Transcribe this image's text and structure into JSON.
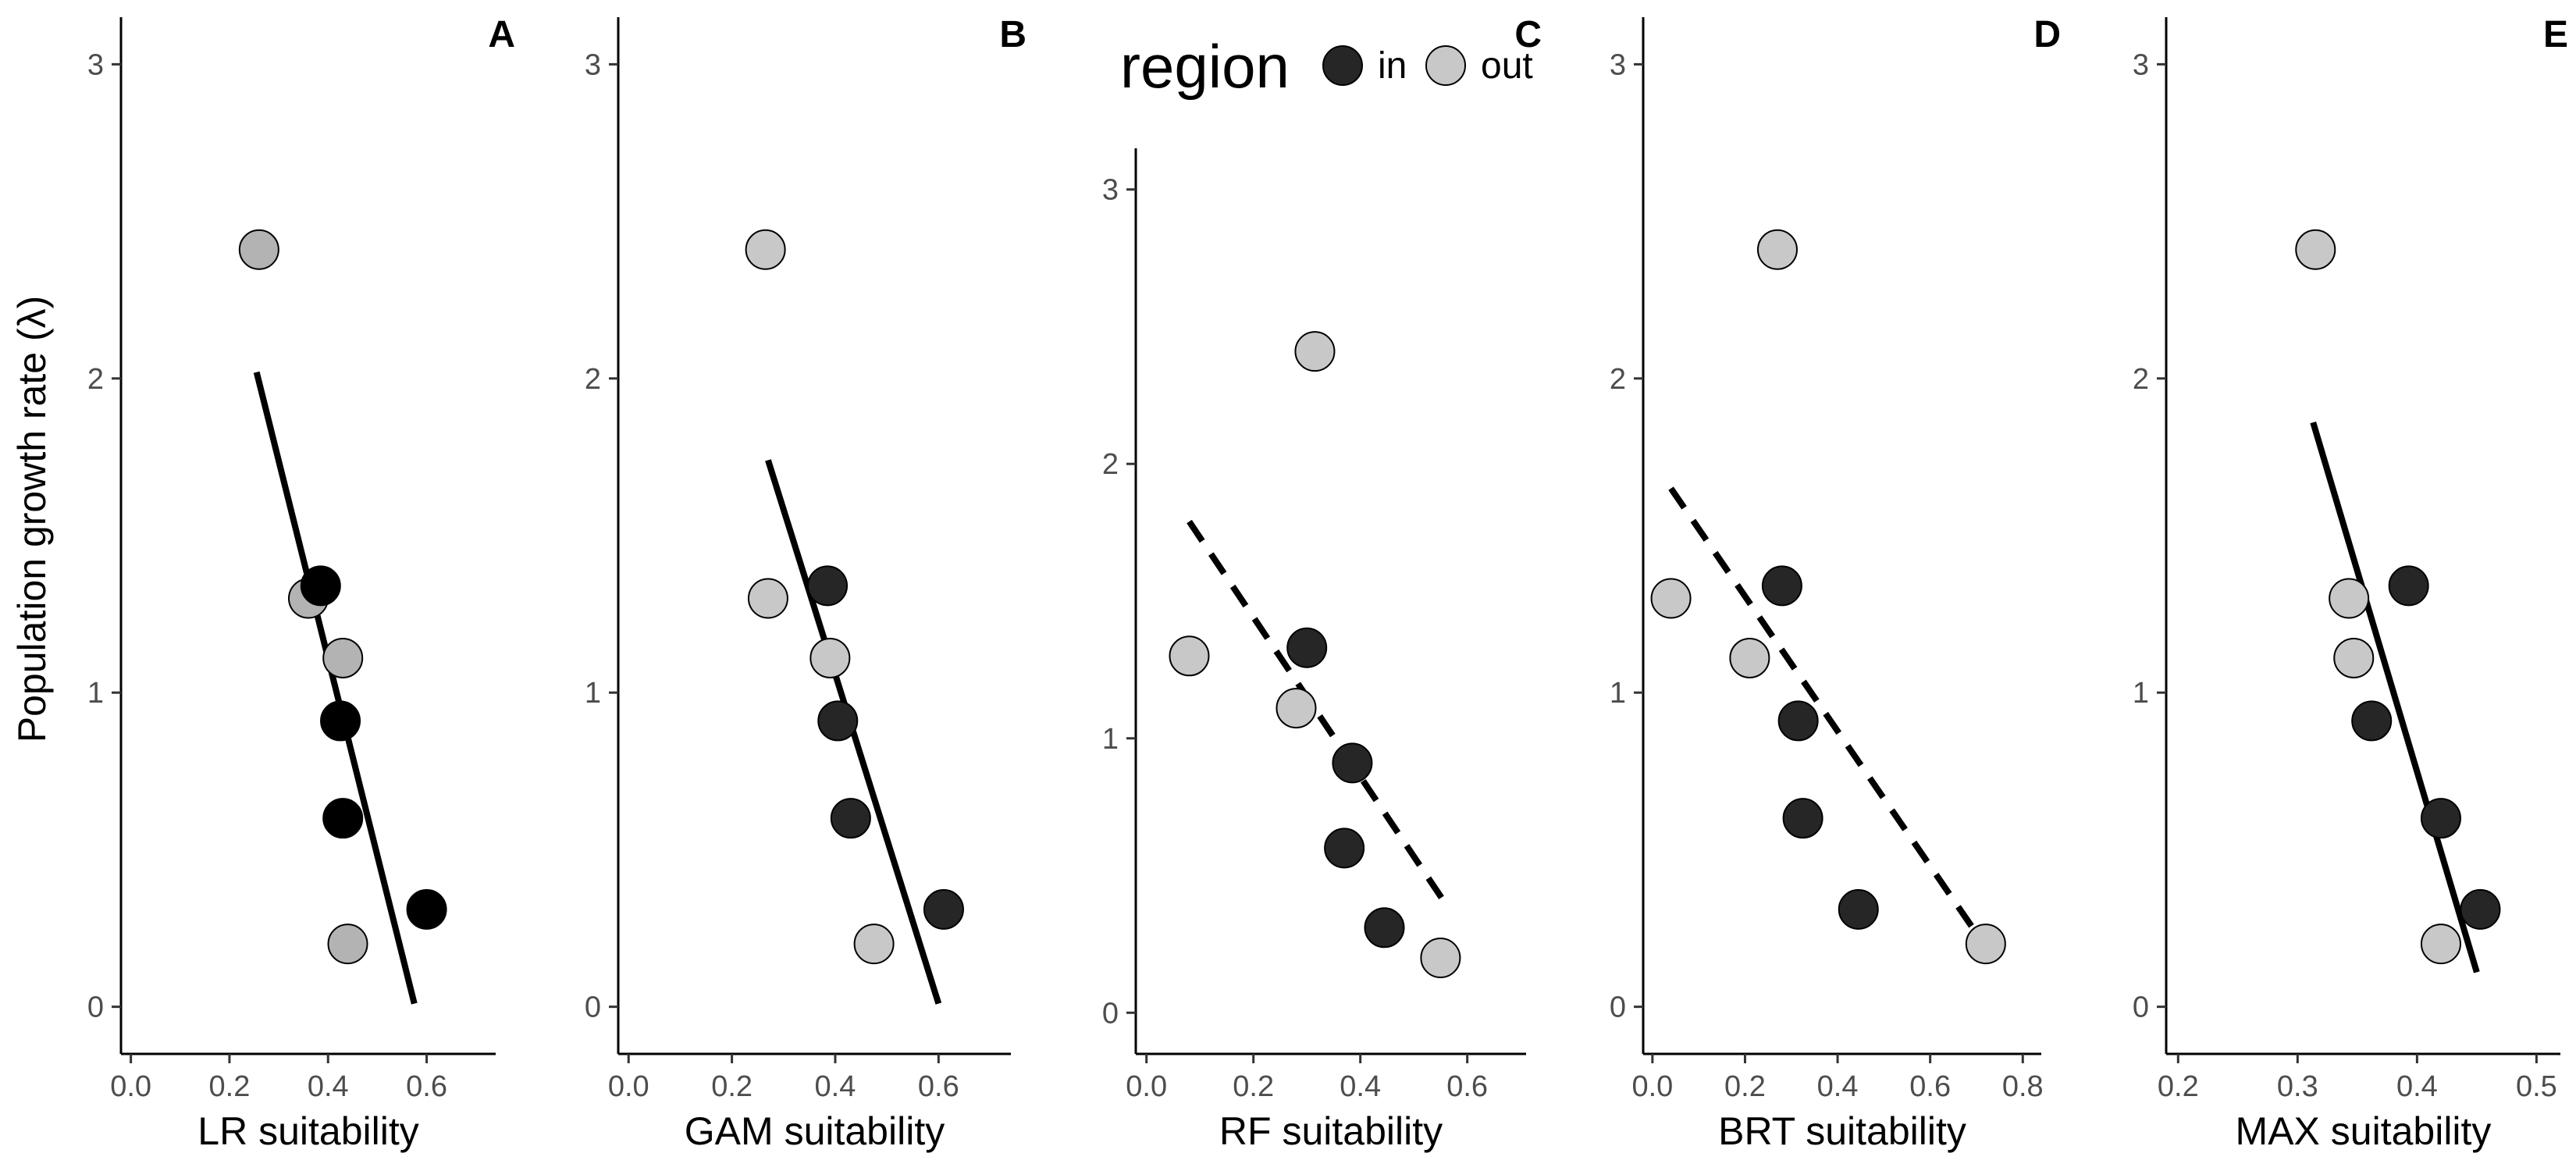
{
  "y_axis_label": "Population growth rate (λ)",
  "legend": {
    "title": "region",
    "entries": [
      {
        "label": "in",
        "color": "#262626"
      },
      {
        "label": "out",
        "color": "#c8c8c8"
      }
    ]
  },
  "chart_data": [
    {
      "type": "scatter",
      "letter": "A",
      "xlabel": "LR suitability",
      "ylabel": "Population growth rate (λ)",
      "xlim": [
        -0.02,
        0.74
      ],
      "ylim": [
        -0.15,
        3.15
      ],
      "xticks": [
        0.0,
        0.2,
        0.4,
        0.6
      ],
      "xtick_labels": [
        "0.0",
        "0.2",
        "0.4",
        "0.6"
      ],
      "yticks": [
        0,
        1,
        2,
        3
      ],
      "ytick_labels": [
        "0",
        "1",
        "2",
        "3"
      ],
      "points": [
        {
          "x": 0.26,
          "y": 2.41,
          "fill": "#b3b3b3"
        },
        {
          "x": 0.36,
          "y": 1.3,
          "fill": "#b3b3b3"
        },
        {
          "x": 0.385,
          "y": 1.34,
          "fill": "#000000"
        },
        {
          "x": 0.43,
          "y": 1.11,
          "fill": "#b3b3b3"
        },
        {
          "x": 0.425,
          "y": 0.91,
          "fill": "#000000"
        },
        {
          "x": 0.43,
          "y": 0.6,
          "fill": "#000000"
        },
        {
          "x": 0.44,
          "y": 0.2,
          "fill": "#b3b3b3"
        },
        {
          "x": 0.6,
          "y": 0.31,
          "fill": "#000000"
        }
      ],
      "trend": {
        "x1": 0.255,
        "y1": 2.02,
        "x2": 0.575,
        "y2": 0.01,
        "dashed": false
      }
    },
    {
      "type": "scatter",
      "letter": "B",
      "xlabel": "GAM suitability",
      "ylabel": "",
      "xlim": [
        -0.02,
        0.74
      ],
      "ylim": [
        -0.15,
        3.15
      ],
      "xticks": [
        0.0,
        0.2,
        0.4,
        0.6
      ],
      "xtick_labels": [
        "0.0",
        "0.2",
        "0.4",
        "0.6"
      ],
      "yticks": [
        0,
        1,
        2,
        3
      ],
      "ytick_labels": [
        "0",
        "1",
        "2",
        "3"
      ],
      "points": [
        {
          "x": 0.265,
          "y": 2.41,
          "fill": "#c8c8c8"
        },
        {
          "x": 0.27,
          "y": 1.3,
          "fill": "#c8c8c8"
        },
        {
          "x": 0.385,
          "y": 1.34,
          "fill": "#262626"
        },
        {
          "x": 0.39,
          "y": 1.11,
          "fill": "#c8c8c8"
        },
        {
          "x": 0.405,
          "y": 0.91,
          "fill": "#262626"
        },
        {
          "x": 0.43,
          "y": 0.6,
          "fill": "#262626"
        },
        {
          "x": 0.475,
          "y": 0.2,
          "fill": "#c8c8c8"
        },
        {
          "x": 0.61,
          "y": 0.31,
          "fill": "#262626"
        }
      ],
      "trend": {
        "x1": 0.27,
        "y1": 1.74,
        "x2": 0.6,
        "y2": 0.01,
        "dashed": false
      }
    },
    {
      "type": "scatter",
      "letter": "C",
      "xlabel": "RF suitability",
      "ylabel": "",
      "xlim": [
        -0.02,
        0.71
      ],
      "ylim": [
        -0.15,
        3.15
      ],
      "xticks": [
        0.0,
        0.2,
        0.4,
        0.6
      ],
      "xtick_labels": [
        "0.0",
        "0.2",
        "0.4",
        "0.6"
      ],
      "yticks": [
        0,
        1,
        2,
        3
      ],
      "ytick_labels": [
        "0",
        "1",
        "2",
        "3"
      ],
      "points": [
        {
          "x": 0.08,
          "y": 1.3,
          "fill": "#c8c8c8"
        },
        {
          "x": 0.28,
          "y": 1.11,
          "fill": "#c8c8c8"
        },
        {
          "x": 0.3,
          "y": 1.33,
          "fill": "#262626"
        },
        {
          "x": 0.315,
          "y": 2.41,
          "fill": "#c8c8c8"
        },
        {
          "x": 0.37,
          "y": 0.6,
          "fill": "#262626"
        },
        {
          "x": 0.385,
          "y": 0.91,
          "fill": "#262626"
        },
        {
          "x": 0.445,
          "y": 0.31,
          "fill": "#262626"
        },
        {
          "x": 0.55,
          "y": 0.2,
          "fill": "#c8c8c8"
        }
      ],
      "trend": {
        "x1": 0.08,
        "y1": 1.79,
        "x2": 0.555,
        "y2": 0.41,
        "dashed": true
      }
    },
    {
      "type": "scatter",
      "letter": "D",
      "xlabel": "BRT suitability",
      "ylabel": "",
      "xlim": [
        -0.02,
        0.84
      ],
      "ylim": [
        -0.15,
        3.15
      ],
      "xticks": [
        0.0,
        0.2,
        0.4,
        0.6,
        0.8
      ],
      "xtick_labels": [
        "0.0",
        "0.2",
        "0.4",
        "0.6",
        "0.8"
      ],
      "yticks": [
        0,
        1,
        2,
        3
      ],
      "ytick_labels": [
        "0",
        "1",
        "2",
        "3"
      ],
      "points": [
        {
          "x": 0.04,
          "y": 1.3,
          "fill": "#c8c8c8"
        },
        {
          "x": 0.21,
          "y": 1.11,
          "fill": "#c8c8c8"
        },
        {
          "x": 0.27,
          "y": 2.41,
          "fill": "#c8c8c8"
        },
        {
          "x": 0.28,
          "y": 1.34,
          "fill": "#262626"
        },
        {
          "x": 0.315,
          "y": 0.91,
          "fill": "#262626"
        },
        {
          "x": 0.325,
          "y": 0.6,
          "fill": "#262626"
        },
        {
          "x": 0.445,
          "y": 0.31,
          "fill": "#262626"
        },
        {
          "x": 0.72,
          "y": 0.2,
          "fill": "#c8c8c8"
        }
      ],
      "trend": {
        "x1": 0.04,
        "y1": 1.65,
        "x2": 0.725,
        "y2": 0.18,
        "dashed": true
      }
    },
    {
      "type": "scatter",
      "letter": "E",
      "xlabel": "MAX suitability",
      "ylabel": "",
      "xlim": [
        0.19,
        0.52
      ],
      "ylim": [
        -0.15,
        3.15
      ],
      "xticks": [
        0.2,
        0.3,
        0.4,
        0.5
      ],
      "xtick_labels": [
        "0.2",
        "0.3",
        "0.4",
        "0.5"
      ],
      "yticks": [
        0,
        1,
        2,
        3
      ],
      "ytick_labels": [
        "0",
        "1",
        "2",
        "3"
      ],
      "points": [
        {
          "x": 0.315,
          "y": 2.41,
          "fill": "#c8c8c8"
        },
        {
          "x": 0.343,
          "y": 1.3,
          "fill": "#c8c8c8"
        },
        {
          "x": 0.347,
          "y": 1.11,
          "fill": "#c8c8c8"
        },
        {
          "x": 0.362,
          "y": 0.91,
          "fill": "#262626"
        },
        {
          "x": 0.393,
          "y": 1.34,
          "fill": "#262626"
        },
        {
          "x": 0.42,
          "y": 0.6,
          "fill": "#262626"
        },
        {
          "x": 0.42,
          "y": 0.2,
          "fill": "#c8c8c8"
        },
        {
          "x": 0.453,
          "y": 0.31,
          "fill": "#262626"
        }
      ],
      "trend": {
        "x1": 0.313,
        "y1": 1.86,
        "x2": 0.45,
        "y2": 0.11,
        "dashed": false
      }
    }
  ]
}
